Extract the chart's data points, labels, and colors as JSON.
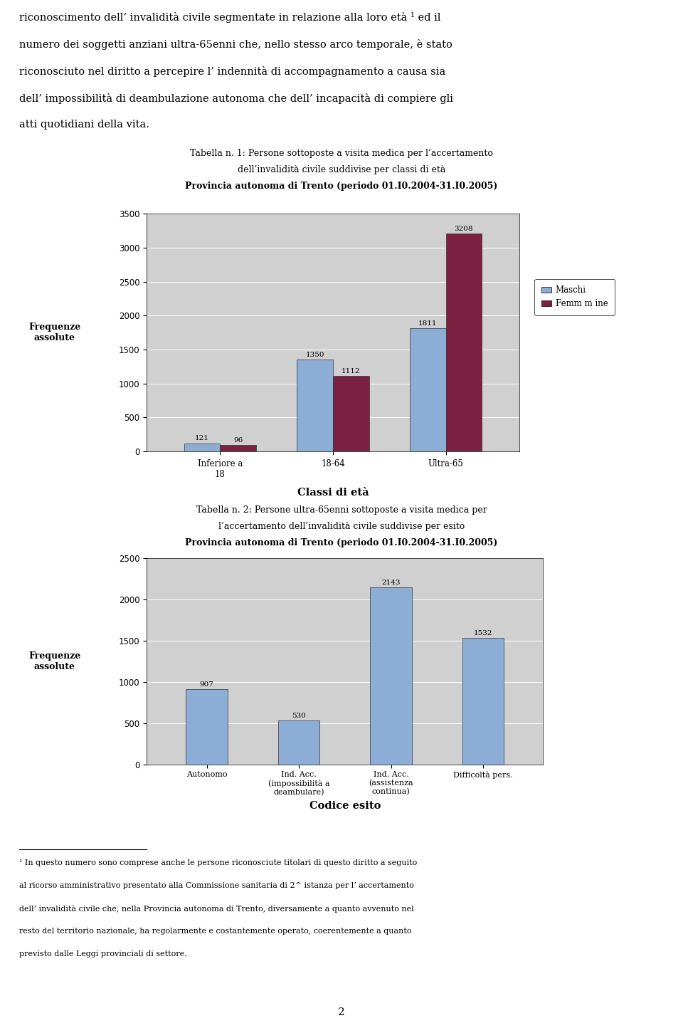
{
  "page_bg": "#ffffff",
  "top_text_lines": [
    "riconoscimento dell’ invalidità civile segmentate in relazione alla loro età ¹ ed il",
    "numero dei soggetti anziani ultra-65enni che, nello stesso arco temporale, è stato",
    "riconosciuto nel diritto a percepire l’ indennità di accompagnamento a causa sia",
    "dell’ impossibilità di deambulazione autonoma che dell’ incapacità di compiere gli",
    "atti quotidiani della vita."
  ],
  "chart1": {
    "title_line1": "Tabella n. 1: Persone sottoposte a visita medica per l’accertamento",
    "title_line2": "dell’invalidità civile suddivise per classi di età",
    "title_line3": "Provincia autonoma di Trento (periodo 01.I0.2004-31.I0.2005)",
    "categories": [
      "Inferiore a\n18",
      "18-64",
      "Ultra-65"
    ],
    "maschi": [
      121,
      1350,
      1811
    ],
    "femmine": [
      96,
      1112,
      3208
    ],
    "maschi_labels": [
      "121",
      "1350",
      "1811"
    ],
    "femmine_labels": [
      "96",
      "1112",
      "3208"
    ],
    "ylabel_line1": "Frequenze",
    "ylabel_line2": "assolute",
    "xlabel": "Classi di età",
    "ylim": [
      0,
      3500
    ],
    "yticks": [
      0,
      500,
      1000,
      1500,
      2000,
      2500,
      3000,
      3500
    ],
    "color_maschi": "#8badd6",
    "color_femmine": "#7b2040",
    "legend_maschi": "Maschi",
    "legend_femmine": "Femm m ine",
    "bar_width": 0.32,
    "plot_bg": "#d0d0d0"
  },
  "chart2": {
    "title_line1": "Tabella n. 2: Persone ultra-65enni sottoposte a visita medica per",
    "title_line2": "l’accertamento dell’invalidità civile suddivise per esito",
    "title_line3": "Provincia autonoma di Trento (periodo 01.I0.2004-31.I0.2005)",
    "categories": [
      "Autonomo",
      "Ind. Acc.\n(impossibilità a\ndeambulare)",
      "Ind. Acc.\n(assistenza\ncontinua)",
      "Difficoltà pers."
    ],
    "values": [
      907,
      530,
      2143,
      1532
    ],
    "labels": [
      "907",
      "530",
      "2143",
      "1532"
    ],
    "ylabel_line1": "Frequenze",
    "ylabel_line2": "assolute",
    "xlabel": "Codice esito",
    "ylim": [
      0,
      2500
    ],
    "yticks": [
      0,
      500,
      1000,
      1500,
      2000,
      2500
    ],
    "color": "#8badd6",
    "bar_width": 0.45,
    "plot_bg": "#d0d0d0"
  },
  "footnote_lines": [
    "¹ In questo numero sono comprese anche le persone riconosciute titolari di questo diritto a seguito",
    "al ricorso amministrativo presentato alla Commissione sanitaria di 2^ istanza per l’ accertamento",
    "dell’ invalidità civile che, nella Provincia autonoma di Trento, diversamente a quanto avvenuto nel",
    "resto del territorio nazionale, ha regolarmente e costantemente operato, coerentemente a quanto",
    "previsto dalle Leggi provinciali di settore."
  ],
  "page_number": "2"
}
